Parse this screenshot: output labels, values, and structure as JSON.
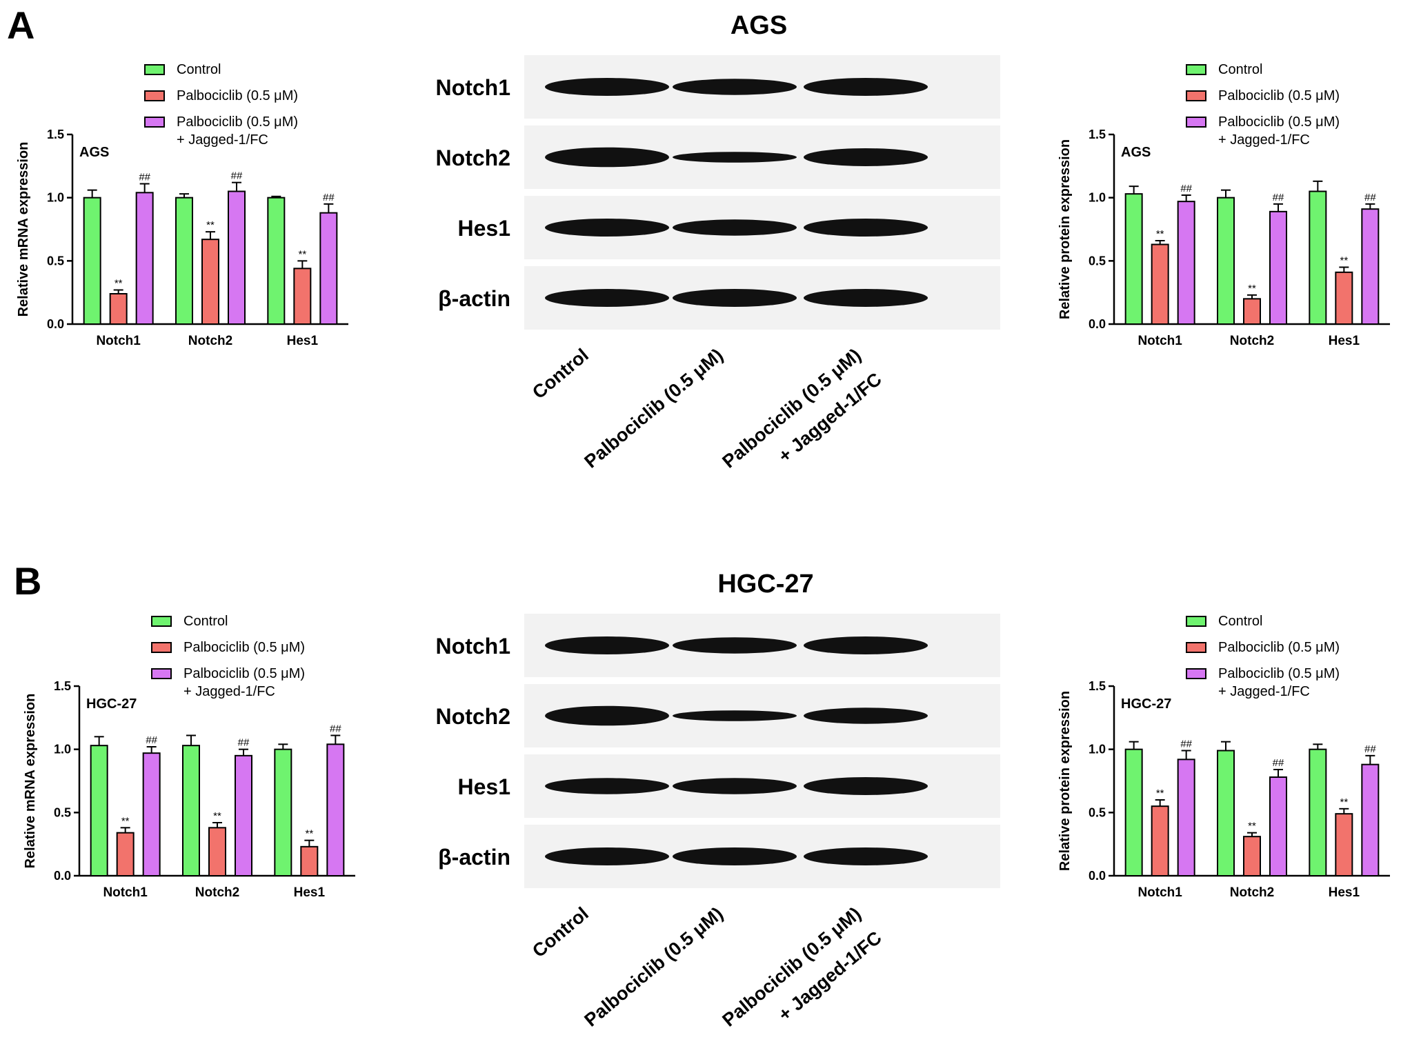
{
  "panels": [
    {
      "letter": "A",
      "blot": {
        "title": "AGS",
        "rows": [
          "Notch1",
          "Notch2",
          "Hes1",
          "β-actin"
        ],
        "lanes": [
          "Control",
          "Palbociclib (0.5 μM)",
          "Palbociclib (0.5 μM)",
          "+ Jagged-1/FC"
        ]
      }
    },
    {
      "letter": "B",
      "blot": {
        "title": "HGC-27",
        "rows": [
          "Notch1",
          "Notch2",
          "Hes1",
          "β-actin"
        ],
        "lanes": [
          "Control",
          "Palbociclib (0.5 μM)",
          "Palbociclib (0.5 μM)",
          "+ Jagged-1/FC"
        ]
      }
    }
  ],
  "colors": {
    "control": "#6FF36F",
    "palbo": "#F2736C",
    "jagged": "#D677F2"
  },
  "chart_data": [
    {
      "type": "bar",
      "title": "AGS",
      "ylabel": "Relative mRNA expression",
      "categories": [
        "Notch1",
        "Notch2",
        "Hes1"
      ],
      "ylim": [
        0,
        1.5
      ],
      "yticks": [
        "0.0",
        "0.5",
        "1.0",
        "1.5"
      ],
      "legend": [
        "Control",
        "Palbociclib (0.5 μM)",
        "Palbociclib (0.5 μM)",
        "+ Jagged-1/FC"
      ],
      "series": [
        {
          "name": "Control",
          "values": [
            1.0,
            1.0,
            1.0
          ],
          "errors": [
            0.06,
            0.03,
            0.01
          ],
          "marks": [
            "",
            "",
            ""
          ]
        },
        {
          "name": "Palbociclib (0.5 μM)",
          "values": [
            0.24,
            0.67,
            0.44
          ],
          "errors": [
            0.03,
            0.06,
            0.06
          ],
          "marks": [
            "**",
            "**",
            "**"
          ]
        },
        {
          "name": "Palbociclib (0.5 μM) + Jagged-1/FC",
          "values": [
            1.04,
            1.05,
            0.88
          ],
          "errors": [
            0.07,
            0.07,
            0.07
          ],
          "marks": [
            "##",
            "##",
            "##"
          ]
        }
      ]
    },
    {
      "type": "bar",
      "title": "AGS",
      "ylabel": "Relative protein expression",
      "categories": [
        "Notch1",
        "Notch2",
        "Hes1"
      ],
      "ylim": [
        0,
        1.5
      ],
      "yticks": [
        "0.0",
        "0.5",
        "1.0",
        "1.5"
      ],
      "legend": [
        "Control",
        "Palbociclib (0.5 μM)",
        "Palbociclib (0.5 μM)",
        "+ Jagged-1/FC"
      ],
      "series": [
        {
          "name": "Control",
          "values": [
            1.03,
            1.0,
            1.05
          ],
          "errors": [
            0.06,
            0.06,
            0.08
          ],
          "marks": [
            "",
            "",
            ""
          ]
        },
        {
          "name": "Palbociclib (0.5 μM)",
          "values": [
            0.63,
            0.2,
            0.41
          ],
          "errors": [
            0.03,
            0.03,
            0.04
          ],
          "marks": [
            "**",
            "**",
            "**"
          ]
        },
        {
          "name": "Palbociclib (0.5 μM) + Jagged-1/FC",
          "values": [
            0.97,
            0.89,
            0.91
          ],
          "errors": [
            0.05,
            0.06,
            0.04
          ],
          "marks": [
            "##",
            "##",
            "##"
          ]
        }
      ]
    },
    {
      "type": "bar",
      "title": "HGC-27",
      "ylabel": "Relative mRNA expression",
      "categories": [
        "Notch1",
        "Notch2",
        "Hes1"
      ],
      "ylim": [
        0,
        1.5
      ],
      "yticks": [
        "0.0",
        "0.5",
        "1.0",
        "1.5"
      ],
      "legend": [
        "Control",
        "Palbociclib (0.5 μM)",
        "Palbociclib (0.5 μM)",
        "+ Jagged-1/FC"
      ],
      "series": [
        {
          "name": "Control",
          "values": [
            1.03,
            1.03,
            1.0
          ],
          "errors": [
            0.07,
            0.08,
            0.04
          ],
          "marks": [
            "",
            "",
            ""
          ]
        },
        {
          "name": "Palbociclib (0.5 μM)",
          "values": [
            0.34,
            0.38,
            0.23
          ],
          "errors": [
            0.04,
            0.04,
            0.05
          ],
          "marks": [
            "**",
            "**",
            "**"
          ]
        },
        {
          "name": "Palbociclib (0.5 μM) + Jagged-1/FC",
          "values": [
            0.97,
            0.95,
            1.04
          ],
          "errors": [
            0.05,
            0.05,
            0.07
          ],
          "marks": [
            "##",
            "##",
            "##"
          ]
        }
      ]
    },
    {
      "type": "bar",
      "title": "HGC-27",
      "ylabel": "Relative protein expression",
      "categories": [
        "Notch1",
        "Notch2",
        "Hes1"
      ],
      "ylim": [
        0,
        1.5
      ],
      "yticks": [
        "0.0",
        "0.5",
        "1.0",
        "1.5"
      ],
      "legend": [
        "Control",
        "Palbociclib (0.5 μM)",
        "Palbociclib (0.5 μM)",
        "+ Jagged-1/FC"
      ],
      "series": [
        {
          "name": "Control",
          "values": [
            1.0,
            0.99,
            1.0
          ],
          "errors": [
            0.06,
            0.07,
            0.04
          ],
          "marks": [
            "",
            "",
            ""
          ]
        },
        {
          "name": "Palbociclib (0.5 μM)",
          "values": [
            0.55,
            0.31,
            0.49
          ],
          "errors": [
            0.05,
            0.03,
            0.04
          ],
          "marks": [
            "**",
            "**",
            "**"
          ]
        },
        {
          "name": "Palbociclib (0.5 μM) + Jagged-1/FC",
          "values": [
            0.92,
            0.78,
            0.88
          ],
          "errors": [
            0.07,
            0.06,
            0.07
          ],
          "marks": [
            "##",
            "##",
            "##"
          ]
        }
      ]
    }
  ]
}
